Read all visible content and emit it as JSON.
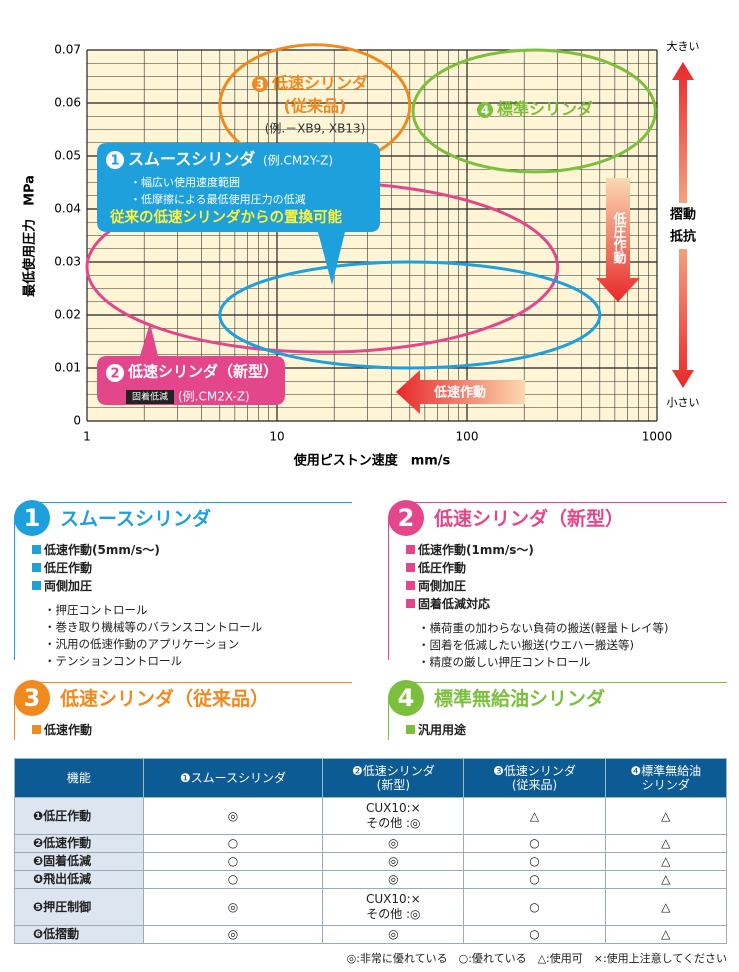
{
  "chart_data": {
    "type": "region",
    "xlabel": "使用ピストン速度　mm/s",
    "ylabel": "最低使用圧力　MPa",
    "xlog": true,
    "xlim": [
      1,
      1000
    ],
    "xticks": [
      1,
      10,
      100,
      1000
    ],
    "ylim": [
      0,
      0.07
    ],
    "yticks": [
      0,
      0.01,
      0.02,
      0.03,
      0.04,
      0.05,
      0.06,
      0.07
    ],
    "grid": true,
    "regions": [
      {
        "num": "1",
        "name": "スムースシリンダ",
        "example": "(例.CM2Y-Z)",
        "bullets": [
          "・幅広い使用速度範囲",
          "・低摩擦による最低使用圧力の低減"
        ],
        "highlight": "従来の低速シリンダからの置換可能",
        "color": "#1ea0dc",
        "x": [
          5,
          500
        ],
        "y": [
          0.01,
          0.03
        ]
      },
      {
        "num": "2",
        "name": "低速シリンダ（新型）",
        "badge": "固着低減",
        "example": "(例.CM2X-Z)",
        "color": "#e4468c",
        "x": [
          1,
          300
        ],
        "y": [
          0.013,
          0.045
        ]
      },
      {
        "num": "3",
        "name": "低速シリンダ",
        "sub": "(従来品)",
        "example": "(例.－XB9, XB13)",
        "color": "#f08a1e",
        "x": [
          5,
          50
        ],
        "y": [
          0.048,
          0.071
        ]
      },
      {
        "num": "4",
        "name": "標準シリンダ",
        "color": "#7cbf3c",
        "x": [
          52,
          980
        ],
        "y": [
          0.047,
          0.07
        ]
      }
    ],
    "pressure_arrow": "低圧作動",
    "speed_arrow": "低速作動",
    "friction": [
      "摺動",
      "抵抗"
    ],
    "large": "大きい",
    "small": "小さい"
  },
  "panels": [
    {
      "num": "1",
      "title": "スムースシリンダ",
      "color": "#1ea0dc",
      "features": [
        "低速作動(5mm/s〜)",
        "低圧作動",
        "両側加圧"
      ],
      "notes": [
        "・押圧コントロール",
        "・巻き取り機械等のバランスコントロール",
        "・汎用の低速作動のアプリケーション",
        "・テンションコントロール"
      ]
    },
    {
      "num": "2",
      "title": "低速シリンダ（新型）",
      "color": "#e4468c",
      "features": [
        "低速作動(1mm/s〜)",
        "低圧作動",
        "両側加圧",
        "固着低減対応"
      ],
      "notes": [
        "・横荷重の加わらない負荷の搬送(軽量トレイ等)",
        "・固着を低減したい搬送(ウエハー搬送等)",
        "・精度の厳しい押圧コントロール"
      ]
    },
    {
      "num": "3",
      "title": "低速シリンダ（従来品）",
      "color": "#f08a1e",
      "features": [
        "低速作動"
      ],
      "notes": []
    },
    {
      "num": "4",
      "title": "標準無給油シリンダ",
      "color": "#7cbf3c",
      "features": [
        "汎用用途"
      ],
      "notes": []
    }
  ],
  "table": {
    "header": [
      "機能",
      "❶スムースシリンダ",
      "❷低速シリンダ\n(新型)",
      "❸低速シリンダ\n(従来品)",
      "❹標準無給油\nシリンダ"
    ],
    "rows": [
      [
        "❶低圧作動",
        "◎",
        "CUX10:×\nその他 :◎",
        "△",
        "△"
      ],
      [
        "❷低速作動",
        "○",
        "◎",
        "○",
        "△"
      ],
      [
        "❸固着低減",
        "○",
        "◎",
        "○",
        "△"
      ],
      [
        "❹飛出低減",
        "○",
        "◎",
        "○",
        "△"
      ],
      [
        "❺押圧制御",
        "◎",
        "CUX10:×\nその他 :◎",
        "○",
        "△"
      ],
      [
        "❻低摺動",
        "◎",
        "◎",
        "○",
        "△"
      ]
    ],
    "legend": "◎:非常に優れている　○:優れている　△:使用可　×:使用上注意してください"
  }
}
